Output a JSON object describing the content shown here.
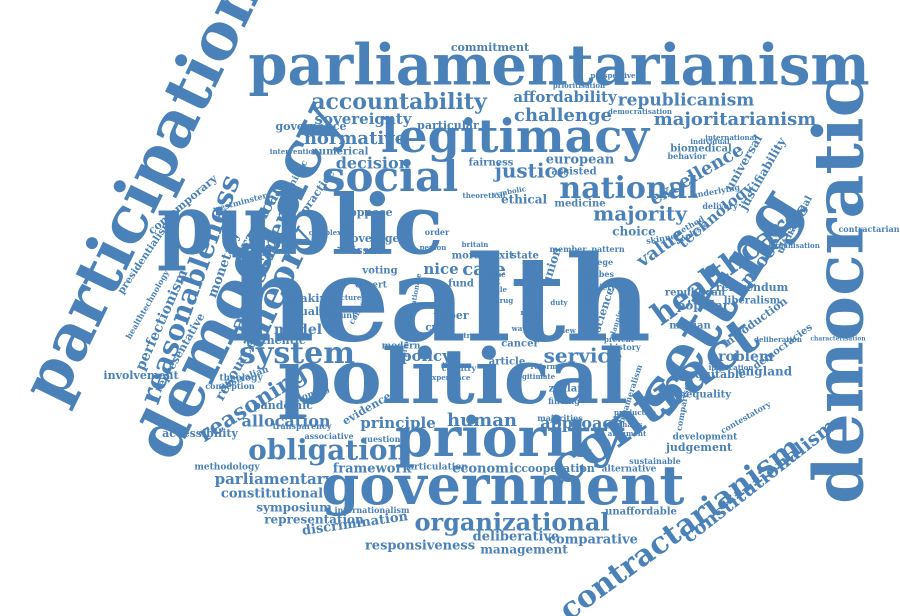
{
  "cloud": {
    "color": "#4a81b8",
    "words": [
      {
        "text": "health",
        "weight": 100
      },
      {
        "text": "public",
        "weight": 88
      },
      {
        "text": "political",
        "weight": 86
      },
      {
        "text": "democratic",
        "weight": 80
      },
      {
        "text": "participation",
        "weight": 78
      },
      {
        "text": "democracy",
        "weight": 76
      },
      {
        "text": "parliamentarianism",
        "weight": 74
      },
      {
        "text": "setting",
        "weight": 72
      },
      {
        "text": "government",
        "weight": 70
      },
      {
        "text": "priority",
        "weight": 70
      },
      {
        "text": "contract",
        "weight": 68
      },
      {
        "text": "legitimacy",
        "weight": 66
      },
      {
        "text": "social",
        "weight": 62
      },
      {
        "text": "theory",
        "weight": 58
      },
      {
        "text": "contractarianism",
        "weight": 56
      },
      {
        "text": "healthcare",
        "weight": 55
      },
      {
        "text": "national",
        "weight": 54
      },
      {
        "text": "reasonableness",
        "weight": 52
      },
      {
        "text": "system",
        "weight": 52
      },
      {
        "text": "obligation",
        "weight": 50
      },
      {
        "text": "organizational",
        "weight": 46
      },
      {
        "text": "accountability",
        "weight": 45
      },
      {
        "text": "assessment",
        "weight": 44
      },
      {
        "text": "constitutionalism",
        "weight": 42
      },
      {
        "text": "reasoning",
        "weight": 42
      },
      {
        "text": "majoritarianism",
        "weight": 40
      },
      {
        "text": "justice",
        "weight": 40
      },
      {
        "text": "majority",
        "weight": 40
      },
      {
        "text": "service",
        "weight": 40
      },
      {
        "text": "excellence",
        "weight": 38
      },
      {
        "text": "republicanism",
        "weight": 36
      },
      {
        "text": "value",
        "weight": 36
      },
      {
        "text": "processes",
        "weight": 36
      },
      {
        "text": "challenge",
        "weight": 35
      },
      {
        "text": "normative",
        "weight": 35
      },
      {
        "text": "affordability",
        "weight": 34
      },
      {
        "text": "care",
        "weight": 34
      },
      {
        "text": "human",
        "weight": 33
      },
      {
        "text": "sovereignty",
        "weight": 32
      },
      {
        "text": "decision",
        "weight": 32
      },
      {
        "text": "practical",
        "weight": 32
      },
      {
        "text": "technology",
        "weight": 32
      },
      {
        "text": "allocation",
        "weight": 31
      },
      {
        "text": "approach",
        "weight": 31
      },
      {
        "text": "principle",
        "weight": 31
      },
      {
        "text": "policy",
        "weight": 30
      },
      {
        "text": "parliamentary",
        "weight": 30
      },
      {
        "text": "framework",
        "weight": 30
      },
      {
        "text": "economic",
        "weight": 30
      },
      {
        "text": "problem",
        "weight": 30
      },
      {
        "text": "nice",
        "weight": 30
      },
      {
        "text": "european",
        "weight": 28
      },
      {
        "text": "deliberative",
        "weight": 28
      },
      {
        "text": "responsiveness",
        "weight": 28
      },
      {
        "text": "comparative",
        "weight": 27
      },
      {
        "text": "representation",
        "weight": 27
      },
      {
        "text": "discrimination",
        "weight": 27
      },
      {
        "text": "constitutional",
        "weight": 27
      },
      {
        "text": "symposium",
        "weight": 26
      },
      {
        "text": "ethical",
        "weight": 26
      },
      {
        "text": "resource",
        "weight": 26
      },
      {
        "text": "model",
        "weight": 26
      },
      {
        "text": "choice",
        "weight": 26
      },
      {
        "text": "management",
        "weight": 25
      },
      {
        "text": "governance",
        "weight": 25
      },
      {
        "text": "particular",
        "weight": 25
      },
      {
        "text": "commitment",
        "weight": 25
      },
      {
        "text": "perfectionism",
        "weight": 25
      },
      {
        "text": "monetary",
        "weight": 24
      },
      {
        "text": "contemporary",
        "weight": 24
      },
      {
        "text": "accessibility",
        "weight": 24
      },
      {
        "text": "involvement",
        "weight": 24
      },
      {
        "text": "pandemic",
        "weight": 24
      },
      {
        "text": "equitable",
        "weight": 24
      },
      {
        "text": "judgement",
        "weight": 24
      },
      {
        "text": "universal",
        "weight": 24
      },
      {
        "text": "justifiability",
        "weight": 23
      },
      {
        "text": "research",
        "weight": 23
      },
      {
        "text": "cooperation",
        "weight": 23
      },
      {
        "text": "unaffordable",
        "weight": 23
      },
      {
        "text": "england",
        "weight": 23
      },
      {
        "text": "introduction",
        "weight": 22
      },
      {
        "text": "popular",
        "weight": 22
      },
      {
        "text": "republican",
        "weight": 22
      },
      {
        "text": "referendum",
        "weight": 22
      },
      {
        "text": "liberalism",
        "weight": 22
      },
      {
        "text": "democracies",
        "weight": 22
      },
      {
        "text": "evidence",
        "weight": 22
      },
      {
        "text": "authentic",
        "weight": 22
      },
      {
        "text": "making",
        "weight": 21
      },
      {
        "text": "equality",
        "weight": 21
      },
      {
        "text": "practice",
        "weight": 21
      },
      {
        "text": "fairness",
        "weight": 21
      },
      {
        "text": "numerical",
        "weight": 21
      },
      {
        "text": "oppose",
        "weight": 21
      },
      {
        "text": "coverage",
        "weight": 21
      },
      {
        "text": "issue",
        "weight": 20
      },
      {
        "text": "moral",
        "weight": 20
      },
      {
        "text": "brexit",
        "weight": 20
      },
      {
        "text": "state",
        "weight": 20
      },
      {
        "text": "voting",
        "weight": 20
      },
      {
        "text": "paper",
        "weight": 20
      },
      {
        "text": "cross",
        "weight": 20
      },
      {
        "text": "fund",
        "weight": 20
      },
      {
        "text": "desert",
        "weight": 20
      },
      {
        "text": "union",
        "weight": 20
      },
      {
        "text": "science",
        "weight": 20
      },
      {
        "text": "median",
        "weight": 20
      },
      {
        "text": "inequality",
        "weight": 20
      },
      {
        "text": "biomedical",
        "weight": 20
      },
      {
        "text": "assisted",
        "weight": 20
      },
      {
        "text": "medicine",
        "weight": 20
      },
      {
        "text": "presidentialism",
        "weight": 19
      },
      {
        "text": "representative",
        "weight": 19
      },
      {
        "text": "australian",
        "weight": 19
      },
      {
        "text": "theology",
        "weight": 19
      },
      {
        "text": "rationing",
        "weight": 19
      },
      {
        "text": "transparency",
        "weight": 19
      },
      {
        "text": "question",
        "weight": 19
      },
      {
        "text": "associative",
        "weight": 19
      },
      {
        "text": "methodology",
        "weight": 19
      },
      {
        "text": "articulation",
        "weight": 19
      },
      {
        "text": "internationalism",
        "weight": 19
      },
      {
        "text": "alternative",
        "weight": 19
      },
      {
        "text": "development",
        "weight": 19
      },
      {
        "text": "contractarian",
        "weight": 19
      },
      {
        "text": "uk national",
        "weight": 19
      },
      {
        "text": "agonistic",
        "weight": 19
      },
      {
        "text": "westminster",
        "weight": 18
      },
      {
        "text": "conception",
        "weight": 18
      },
      {
        "text": "healthtechnology",
        "weight": 18
      },
      {
        "text": "cancer",
        "weight": 18
      },
      {
        "text": "zealand",
        "weight": 18
      },
      {
        "text": "finding",
        "weight": 18
      },
      {
        "text": "modern",
        "weight": 18
      },
      {
        "text": "country",
        "weight": 18
      },
      {
        "text": "article",
        "weight": 18
      },
      {
        "text": "history",
        "weight": 18
      },
      {
        "text": "sustainable",
        "weight": 18
      },
      {
        "text": "comparison",
        "weight": 18
      },
      {
        "text": "method",
        "weight": 18
      },
      {
        "text": "analysis",
        "weight": 18
      },
      {
        "text": "skinner",
        "weight": 18
      },
      {
        "text": "college",
        "weight": 18
      },
      {
        "text": "hobbes",
        "weight": 18
      },
      {
        "text": "society",
        "weight": 18
      },
      {
        "text": "pattern",
        "weight": 18
      },
      {
        "text": "member",
        "weight": 18
      },
      {
        "text": "britain",
        "weight": 18
      },
      {
        "text": "order",
        "weight": 18
      },
      {
        "text": "person",
        "weight": 18
      },
      {
        "text": "drug",
        "weight": 18
      },
      {
        "text": "rule",
        "weight": 18
      },
      {
        "text": "duty",
        "weight": 18
      },
      {
        "text": "cost",
        "weight": 18
      },
      {
        "text": "case",
        "weight": 18
      },
      {
        "text": "term",
        "weight": 18
      },
      {
        "text": "delivery",
        "weight": 18
      },
      {
        "text": "underlying",
        "weight": 18
      },
      {
        "text": "behavior",
        "weight": 18
      },
      {
        "text": "international",
        "weight": 18
      },
      {
        "text": "prioritisation",
        "weight": 18
      },
      {
        "text": "perspective",
        "weight": 18
      },
      {
        "text": "democratisation",
        "weight": 18
      },
      {
        "text": "deliberation",
        "weight": 18
      },
      {
        "text": "characterisation",
        "weight": 18
      },
      {
        "text": "organisation",
        "weight": 18
      },
      {
        "text": "contestatory",
        "weight": 18
      },
      {
        "text": "implication",
        "weight": 18
      },
      {
        "text": "individual",
        "weight": 18
      },
      {
        "text": "intervention",
        "weight": 18
      },
      {
        "text": "bicameralism",
        "weight": 18
      },
      {
        "text": "majorities",
        "weight": 18
      },
      {
        "text": "productive",
        "weight": 18
      },
      {
        "text": "emphasis",
        "weight": 18
      },
      {
        "text": "argument",
        "weight": 18
      },
      {
        "text": "medical",
        "weight": 18
      },
      {
        "text": "planning",
        "weight": 18
      },
      {
        "text": "structure",
        "weight": 18
      },
      {
        "text": "account",
        "weight": 18
      },
      {
        "text": "consensus",
        "weight": 18
      },
      {
        "text": "lottery",
        "weight": 18
      },
      {
        "text": "complex",
        "weight": 18
      },
      {
        "text": "theoretical",
        "weight": 18
      },
      {
        "text": "symbolic",
        "weight": 18
      },
      {
        "text": "priorities",
        "weight": 18
      },
      {
        "text": "experience",
        "weight": 18
      },
      {
        "text": "legitimate",
        "weight": 18
      },
      {
        "text": "rationale",
        "weight": 18
      },
      {
        "text": "reform",
        "weight": 18
      },
      {
        "text": "trust",
        "weight": 18
      },
      {
        "text": "prevent",
        "weight": 18
      },
      {
        "text": "need",
        "weight": 18
      },
      {
        "text": "view",
        "weight": 18
      },
      {
        "text": "way",
        "weight": 18
      }
    ]
  }
}
